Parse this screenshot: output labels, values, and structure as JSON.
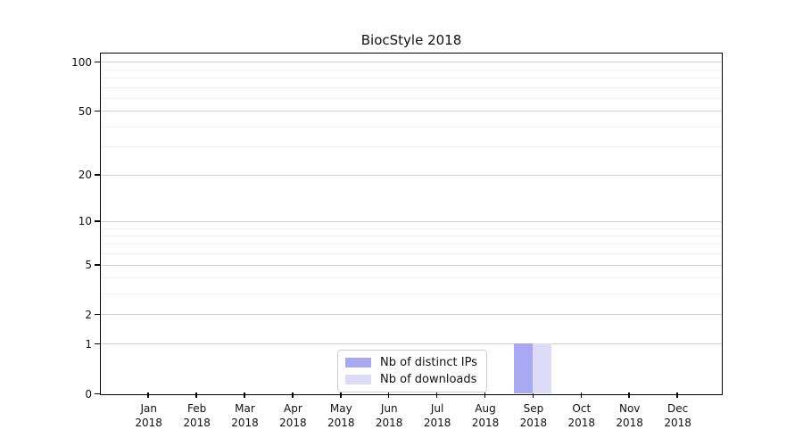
{
  "chart_data": {
    "type": "bar",
    "title": "BiocStyle 2018",
    "categories": [
      "Jan 2018",
      "Feb 2018",
      "Mar 2018",
      "Apr 2018",
      "May 2018",
      "Jun 2018",
      "Jul 2018",
      "Aug 2018",
      "Sep 2018",
      "Oct 2018",
      "Nov 2018",
      "Dec 2018"
    ],
    "months": [
      "Jan",
      "Feb",
      "Mar",
      "Apr",
      "May",
      "Jun",
      "Jul",
      "Aug",
      "Sep",
      "Oct",
      "Nov",
      "Dec"
    ],
    "year_label": "2018",
    "series": [
      {
        "name": "Nb of distinct IPs",
        "color": "#a9a9f3",
        "values": [
          0,
          0,
          0,
          0,
          0,
          0,
          0,
          0,
          1,
          0,
          0,
          0
        ]
      },
      {
        "name": "Nb of downloads",
        "color": "#dcdcf9",
        "values": [
          0,
          0,
          0,
          0,
          0,
          0,
          0,
          0,
          1,
          0,
          0,
          0
        ]
      }
    ],
    "xlabel": "",
    "ylabel": "",
    "yticks": [
      0,
      1,
      2,
      5,
      10,
      20,
      50,
      100
    ],
    "yticks_minor": [
      3,
      4,
      6,
      7,
      8,
      9,
      30,
      40,
      60,
      70,
      80,
      90
    ],
    "yscale": "log1p",
    "ylim": [
      0,
      112
    ],
    "grid": "horizontal",
    "legend_position": "inside-bottom-center",
    "bar_color_distinct_ips": "#a9a9f3",
    "bar_color_downloads": "#dcdcf9",
    "gridline_major_color": "#cfcfcf",
    "gridline_minor_color": "#efefef"
  }
}
